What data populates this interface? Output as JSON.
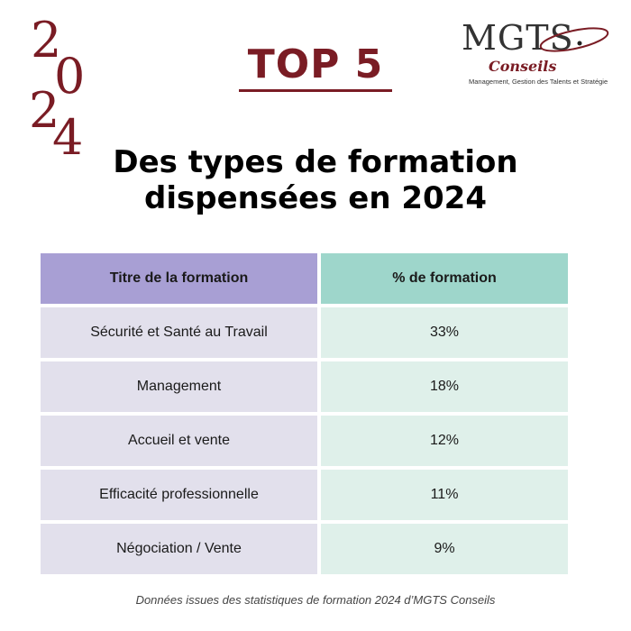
{
  "year": {
    "digits": [
      "2",
      "0",
      "2",
      "4"
    ]
  },
  "heading": {
    "top": "TOP 5",
    "subtitle_line1": "Des types de formation",
    "subtitle_line2": "dispensées en 2024"
  },
  "logo": {
    "brand": "MGTS",
    "sub": "Conseils",
    "tagline": "Management, Gestion des Talents et Stratégie"
  },
  "table": {
    "headers": [
      "Titre de la formation",
      "% de formation"
    ],
    "rows": [
      {
        "title": "Sécurité et Santé au Travail",
        "percent": "33%"
      },
      {
        "title": "Management",
        "percent": "18%"
      },
      {
        "title": "Accueil et vente",
        "percent": "12%"
      },
      {
        "title": "Efficacité professionnelle",
        "percent": "11%"
      },
      {
        "title": "Négociation / Vente",
        "percent": "9%"
      }
    ]
  },
  "footer": {
    "note": "Données issues des statistiques de formation 2024 d’MGTS Conseils"
  },
  "colors": {
    "accent": "#7a1c24",
    "header_left": "#a89fd4",
    "header_right": "#9ed6cb",
    "row_left": "#e2e0ec",
    "row_right": "#dff0ea"
  }
}
